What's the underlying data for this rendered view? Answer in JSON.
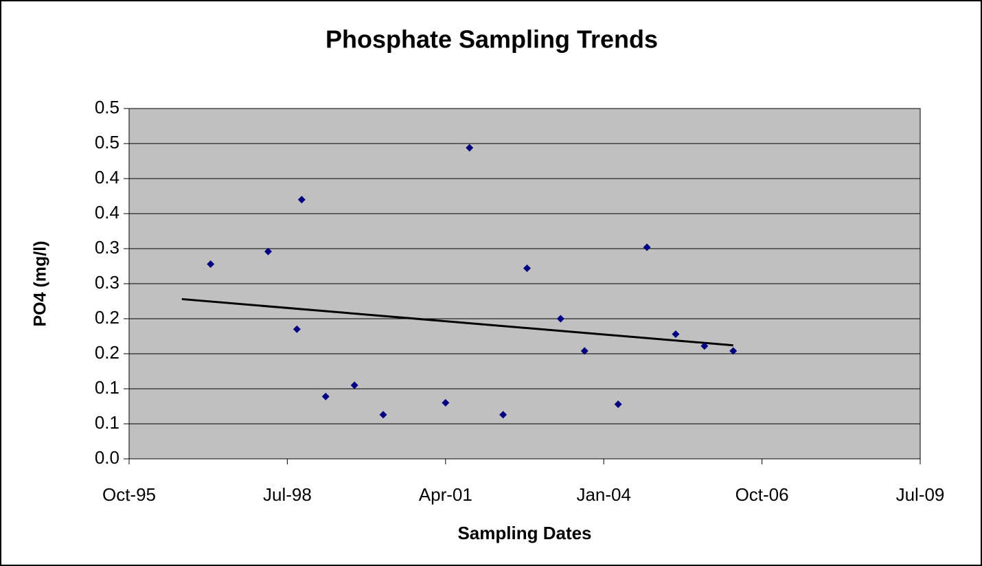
{
  "chart_data": {
    "type": "scatter",
    "title": "Phosphate Sampling Trends",
    "x_label": "Sampling Dates",
    "y_label": "PO4 (mg/l)",
    "color": "#000080",
    "plot_background": "#c0c0c0",
    "grid": true,
    "x": [
      "1997-03",
      "1998-03",
      "1998-09",
      "1998-10",
      "1999-03",
      "1999-09",
      "2000-03",
      "2001-04",
      "2001-09",
      "2002-04",
      "2002-09",
      "2003-04",
      "2003-09",
      "2004-04",
      "2004-10",
      "2005-04",
      "2005-10",
      "2006-04"
    ],
    "values": [
      0.278,
      0.296,
      0.185,
      0.37,
      0.089,
      0.105,
      0.063,
      0.08,
      0.444,
      0.063,
      0.272,
      0.2,
      0.154,
      0.078,
      0.302,
      0.178,
      0.161,
      0.154
    ],
    "trendline": {
      "color": "#000000",
      "x": [
        "1996-09",
        "2006-04"
      ],
      "values": [
        0.228,
        0.162
      ]
    },
    "xlim": [
      "1995-10",
      "2009-07"
    ],
    "xticks": [
      {
        "value": "1995-10",
        "label": "Oct-95"
      },
      {
        "value": "1998-07",
        "label": "Jul-98"
      },
      {
        "value": "2001-04",
        "label": "Apr-01"
      },
      {
        "value": "2004-01",
        "label": "Jan-04"
      },
      {
        "value": "2006-10",
        "label": "Oct-06"
      },
      {
        "value": "2009-07",
        "label": "Jul-09"
      }
    ],
    "ylim": [
      0,
      0.5
    ],
    "yticks": [
      {
        "value": 0,
        "label": "0.0"
      },
      {
        "value": 0.05,
        "label": "0.1"
      },
      0.1,
      {
        "value": 0.15,
        "label": "0.2"
      },
      0.2,
      {
        "value": 0.25,
        "label": "0.3"
      },
      0.3,
      {
        "value": 0.35,
        "label": "0.4"
      },
      0.4,
      {
        "value": 0.45,
        "label": "0.5"
      },
      0.5
    ]
  }
}
